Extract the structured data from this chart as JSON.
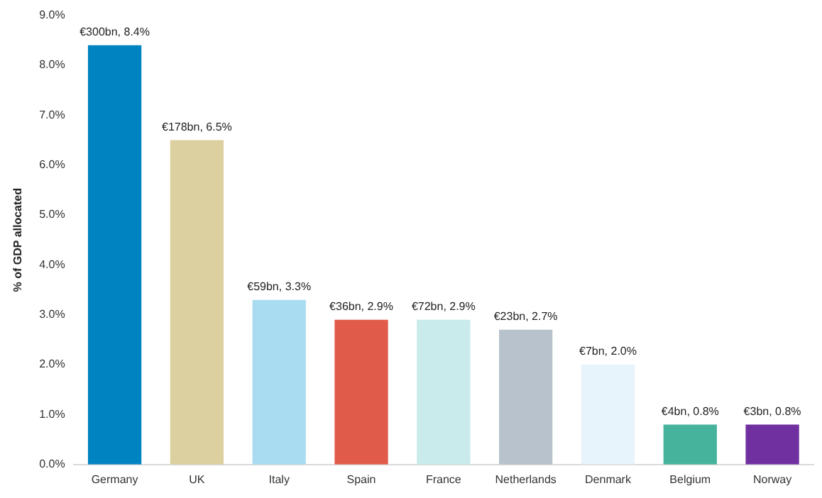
{
  "chart_data": {
    "type": "bar",
    "ylabel": "% of GDP allocated",
    "categories": [
      "Germany",
      "UK",
      "Italy",
      "Spain",
      "France",
      "Netherlands",
      "Denmark",
      "Belgium",
      "Norway"
    ],
    "values": [
      8.4,
      6.5,
      3.3,
      2.9,
      2.9,
      2.7,
      2.0,
      0.8,
      0.8
    ],
    "colors": [
      "#0083c1",
      "#ddd0a0",
      "#aadcf1",
      "#e05b4a",
      "#c9ebec",
      "#b8c2cc",
      "#e7f4fb",
      "#46b39c",
      "#7030a0"
    ],
    "value_labels": [
      "€300bn, 8.4%",
      "€178bn, 6.5%",
      "€59bn, 3.3%",
      "€36bn, 2.9%",
      "€72bn, 2.9%",
      "€23bn, 2.7%",
      "€7bn, 2.0%",
      "€4bn, 0.8%",
      "€3bn, 0.8%"
    ],
    "ylim": [
      0,
      9
    ],
    "yticks": [
      {
        "value": 0,
        "label": "0.0%"
      },
      {
        "value": 1,
        "label": "1.0%"
      },
      {
        "value": 2,
        "label": "2.0%"
      },
      {
        "value": 3,
        "label": "3.0%"
      },
      {
        "value": 4,
        "label": "4.0%"
      },
      {
        "value": 5,
        "label": "5.0%"
      },
      {
        "value": 6,
        "label": "6.0%"
      },
      {
        "value": 7,
        "label": "7.0%"
      },
      {
        "value": 8,
        "label": "8.0%"
      },
      {
        "value": 9,
        "label": "9.0%"
      }
    ],
    "grid": false,
    "legend": false
  }
}
